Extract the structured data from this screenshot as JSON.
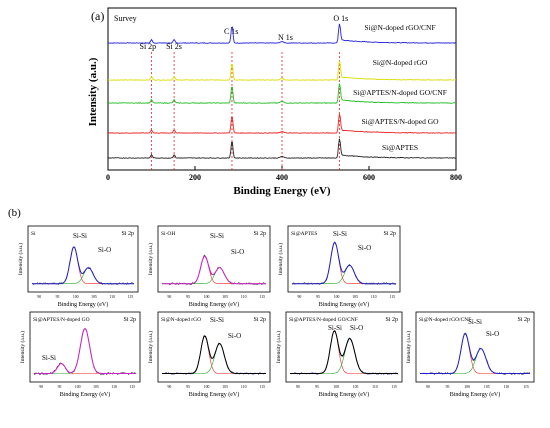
{
  "chart_data": [
    {
      "type": "line",
      "panel_label": "(a)",
      "title": "Survey",
      "xlabel": "Binding Energy (eV)",
      "ylabel": "Intensity (a.u.)",
      "xlim": [
        0,
        800
      ],
      "x_ticks": [
        "0",
        "200",
        "400",
        "600",
        "800"
      ],
      "reference_lines": [
        {
          "label": "Si 2p",
          "x": 100
        },
        {
          "label": "Si 2s",
          "x": 152
        },
        {
          "label": "C 1s",
          "x": 285
        },
        {
          "label": "N 1s",
          "x": 400
        },
        {
          "label": "O 1s",
          "x": 532
        }
      ],
      "series": [
        {
          "name": "Si@N-doped rGO/CNF",
          "color": "#2222dd"
        },
        {
          "name": "Si@N-doped rGO",
          "color": "#dddd00"
        },
        {
          "name": "Si@APTES/N-doped GO/CNF",
          "color": "#22bb22"
        },
        {
          "name": "Si@APTES/N-doped GO",
          "color": "#ee2222"
        },
        {
          "name": "Si@APTES",
          "color": "#222222"
        }
      ],
      "grid": false
    },
    {
      "type": "line",
      "panel_label": "(b)",
      "xlabel": "Binding Energy (eV)",
      "ylabel": "Intensity (a.u.)",
      "core_level": "Si 2p",
      "panels": [
        {
          "title": "Si",
          "x_ticks": [
            "90",
            "95",
            "100",
            "105",
            "110",
            "115"
          ],
          "peaks": [
            {
              "label": "Si-Si",
              "x": 99.5
            },
            {
              "label": "Si-O",
              "x": 103.5
            }
          ],
          "colors": [
            "#2222cc",
            "#ee2222",
            "#22aa22",
            "#000000"
          ]
        },
        {
          "title": "Si-OH",
          "x_ticks": [
            "90",
            "95",
            "100",
            "105",
            "110",
            "115"
          ],
          "peaks": [
            {
              "label": "Si-Si",
              "x": 99.5
            },
            {
              "label": "Si-O",
              "x": 103.5
            }
          ],
          "colors": [
            "#cc22cc",
            "#ee2222",
            "#22aa22",
            "#000000"
          ]
        },
        {
          "title": "Si@APTES",
          "x_ticks": [
            "90",
            "95",
            "100",
            "105",
            "110",
            "115"
          ],
          "peaks": [
            {
              "label": "Si-Si",
              "x": 99.5
            },
            {
              "label": "Si-O",
              "x": 103.5
            }
          ],
          "colors": [
            "#2222cc",
            "#ee2222",
            "#22aa22",
            "#000000"
          ]
        },
        {
          "title": "Si@APTES/N-doped GO",
          "x_ticks": [
            "90",
            "95",
            "100",
            "105",
            "110",
            "115"
          ],
          "peaks": [
            {
              "label": "Si-Si",
              "x": 95.5
            },
            {
              "label": "",
              "x": 102
            }
          ],
          "colors": [
            "#cc22cc",
            "#ee2222",
            "#22aa22",
            "#000000"
          ]
        },
        {
          "title": "Si@N-doped rGO",
          "x_ticks": [
            "90",
            "95",
            "100",
            "105",
            "110",
            "115"
          ],
          "peaks": [
            {
              "label": "Si-Si",
              "x": 99.5
            },
            {
              "label": "Si-O",
              "x": 103.5
            }
          ],
          "colors": [
            "#000000",
            "#ee2222",
            "#22aa22",
            "#2222cc"
          ]
        },
        {
          "title": "Si@APTES/N-doped GO/CNF",
          "x_ticks": [
            "90",
            "95",
            "100",
            "105",
            "110",
            "115"
          ],
          "peaks": [
            {
              "label": "Si-Si",
              "x": 99.5
            },
            {
              "label": "Si-O",
              "x": 103.5
            }
          ],
          "colors": [
            "#000000",
            "#ee2222",
            "#22aa22",
            "#2222cc"
          ]
        },
        {
          "title": "Si@N-doped rGO/CNF",
          "x_ticks": [
            "90",
            "95",
            "100",
            "105",
            "110",
            "115"
          ],
          "peaks": [
            {
              "label": "Si-Si",
              "x": 99.5
            },
            {
              "label": "Si-O",
              "x": 103.5
            }
          ],
          "colors": [
            "#2222cc",
            "#ee2222",
            "#22aa22",
            "#000000"
          ]
        }
      ],
      "grid": false
    }
  ]
}
